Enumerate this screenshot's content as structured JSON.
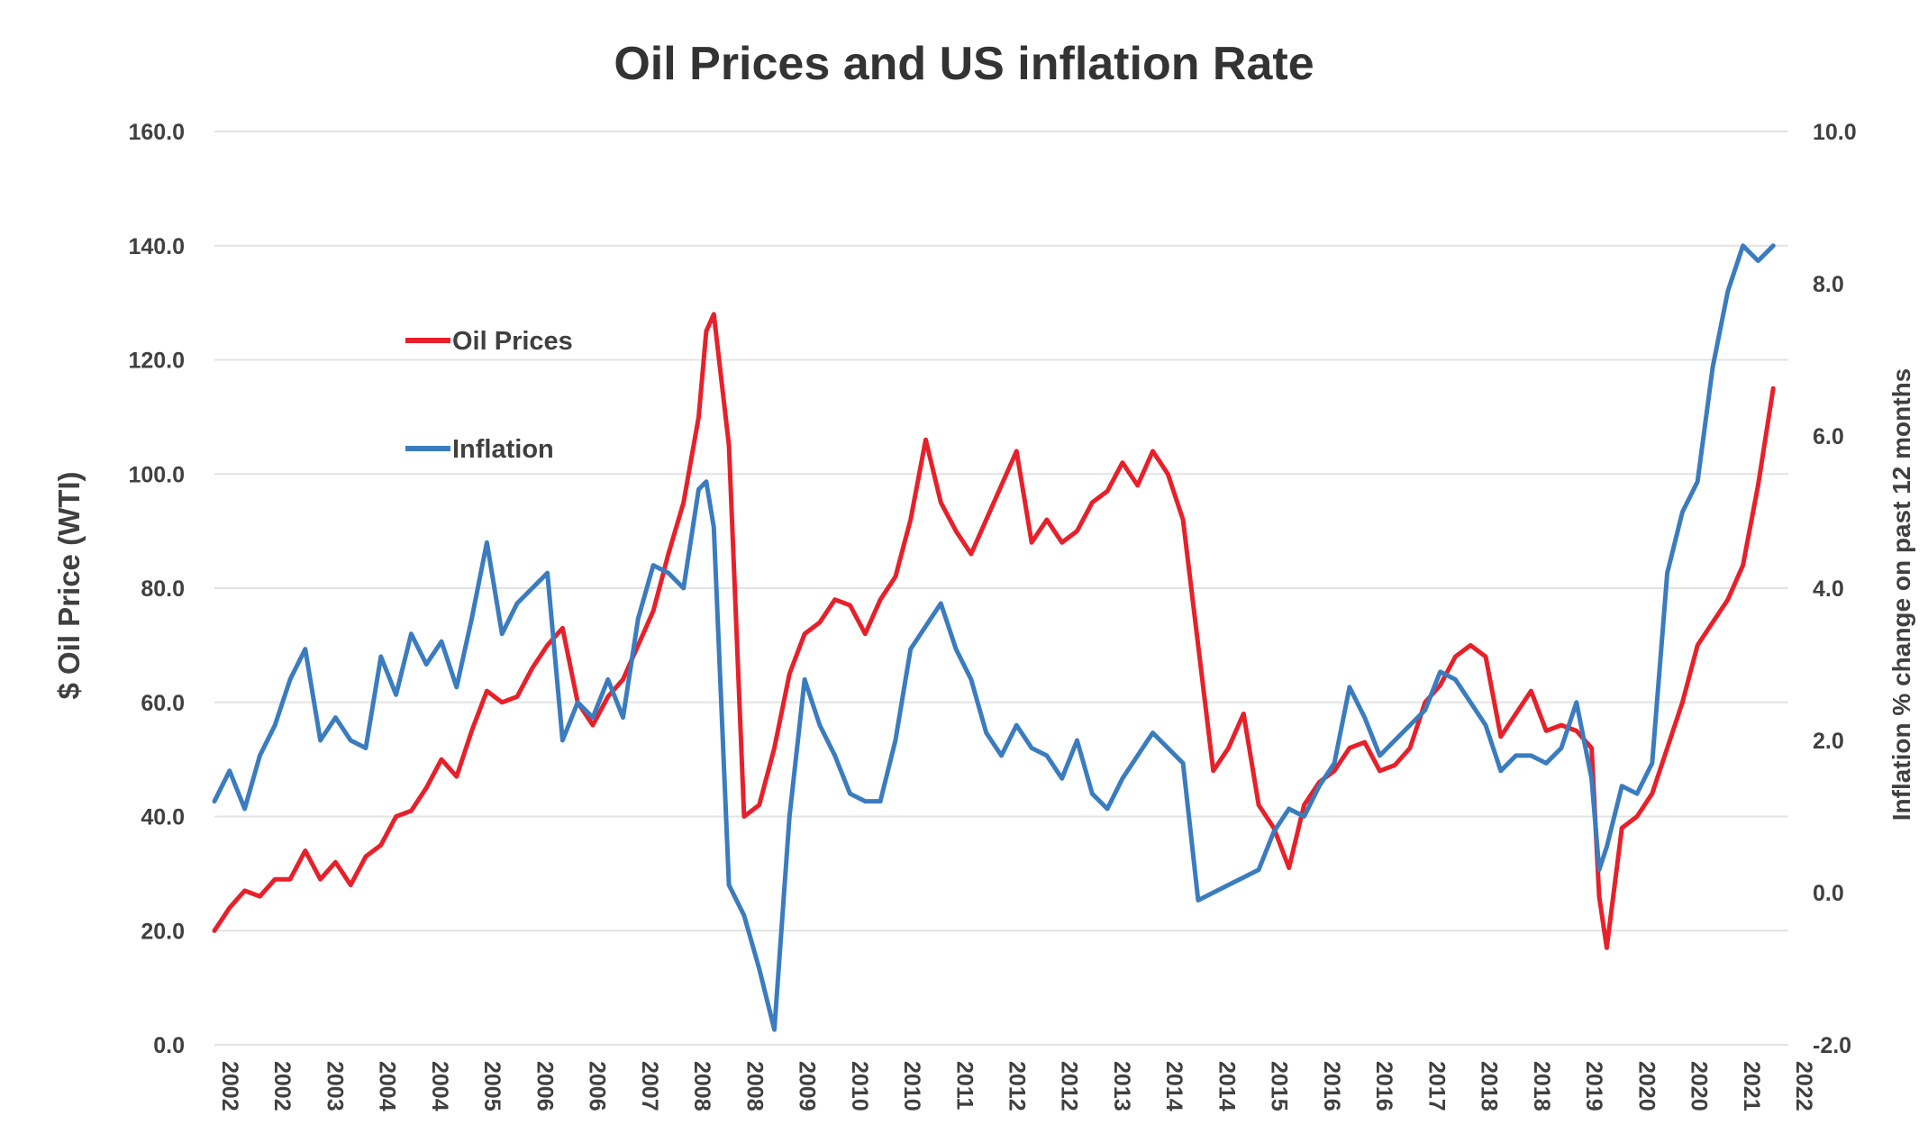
{
  "chart_data": {
    "type": "line",
    "title": "Oil Prices and US inflation Rate",
    "ylabel": "$ Oil Price (WTI)",
    "ylabel_right": "Inflation % change on past 12 months",
    "ylim": [
      0,
      160
    ],
    "ylim_right": [
      -2,
      10
    ],
    "yticks": [
      "0.0",
      "20.0",
      "40.0",
      "60.0",
      "80.0",
      "100.0",
      "120.0",
      "140.0",
      "160.0"
    ],
    "yticks_right": [
      "-2.0",
      "0.0",
      "2.0",
      "4.0",
      "6.0",
      "8.0",
      "10.0"
    ],
    "xlim": [
      2002.0,
      2022.8
    ],
    "x_tick_labels": [
      "2002",
      "2002",
      "2003",
      "2004",
      "2004",
      "2005",
      "2006",
      "2006",
      "2007",
      "2008",
      "2008",
      "2009",
      "2010",
      "2010",
      "2011",
      "2012",
      "2012",
      "2013",
      "2014",
      "2014",
      "2015",
      "2016",
      "2016",
      "2017",
      "2018",
      "2018",
      "2019",
      "2020",
      "2020",
      "2021",
      "2022"
    ],
    "grid": true,
    "legend_placement": "upper-left",
    "series": [
      {
        "name": "Oil Prices",
        "axis": "left",
        "color": "#e8202a",
        "x": [
          2002.0,
          2002.2,
          2002.4,
          2002.6,
          2002.8,
          2003.0,
          2003.2,
          2003.4,
          2003.6,
          2003.8,
          2004.0,
          2004.2,
          2004.4,
          2004.6,
          2004.8,
          2005.0,
          2005.2,
          2005.4,
          2005.6,
          2005.8,
          2006.0,
          2006.2,
          2006.4,
          2006.6,
          2006.8,
          2007.0,
          2007.2,
          2007.4,
          2007.6,
          2007.8,
          2008.0,
          2008.2,
          2008.4,
          2008.5,
          2008.6,
          2008.8,
          2009.0,
          2009.2,
          2009.4,
          2009.6,
          2009.8,
          2010.0,
          2010.2,
          2010.4,
          2010.6,
          2010.8,
          2011.0,
          2011.2,
          2011.4,
          2011.6,
          2011.8,
          2012.0,
          2012.2,
          2012.4,
          2012.6,
          2012.8,
          2013.0,
          2013.2,
          2013.4,
          2013.6,
          2013.8,
          2014.0,
          2014.2,
          2014.4,
          2014.6,
          2014.8,
          2015.0,
          2015.2,
          2015.4,
          2015.6,
          2015.8,
          2016.0,
          2016.2,
          2016.4,
          2016.6,
          2016.8,
          2017.0,
          2017.2,
          2017.4,
          2017.6,
          2017.8,
          2018.0,
          2018.2,
          2018.4,
          2018.6,
          2018.8,
          2019.0,
          2019.2,
          2019.4,
          2019.6,
          2019.8,
          2020.0,
          2020.2,
          2020.3,
          2020.4,
          2020.6,
          2020.8,
          2021.0,
          2021.2,
          2021.4,
          2021.6,
          2021.8,
          2022.0,
          2022.2,
          2022.4,
          2022.6
        ],
        "values": [
          20,
          24,
          27,
          26,
          29,
          29,
          34,
          29,
          32,
          28,
          33,
          35,
          40,
          41,
          45,
          50,
          47,
          55,
          62,
          60,
          61,
          66,
          70,
          73,
          60,
          56,
          61,
          64,
          70,
          76,
          86,
          95,
          110,
          125,
          128,
          105,
          40,
          42,
          52,
          65,
          72,
          74,
          78,
          77,
          72,
          78,
          82,
          92,
          106,
          95,
          90,
          86,
          92,
          98,
          104,
          88,
          92,
          88,
          90,
          95,
          97,
          102,
          98,
          104,
          100,
          92,
          70,
          48,
          52,
          58,
          42,
          38,
          31,
          42,
          46,
          48,
          52,
          53,
          48,
          49,
          52,
          60,
          63,
          68,
          70,
          68,
          54,
          58,
          62,
          55,
          56,
          55,
          52,
          26,
          17,
          38,
          40,
          44,
          52,
          60,
          70,
          74,
          78,
          84,
          98,
          115
        ]
      },
      {
        "name": "Inflation",
        "axis": "right",
        "color": "#3a7cbf",
        "x": [
          2002.0,
          2002.2,
          2002.4,
          2002.6,
          2002.8,
          2003.0,
          2003.2,
          2003.4,
          2003.6,
          2003.8,
          2004.0,
          2004.2,
          2004.4,
          2004.6,
          2004.8,
          2005.0,
          2005.2,
          2005.4,
          2005.6,
          2005.8,
          2006.0,
          2006.2,
          2006.4,
          2006.6,
          2006.8,
          2007.0,
          2007.2,
          2007.4,
          2007.6,
          2007.8,
          2008.0,
          2008.2,
          2008.4,
          2008.5,
          2008.6,
          2008.8,
          2009.0,
          2009.2,
          2009.4,
          2009.6,
          2009.8,
          2010.0,
          2010.2,
          2010.4,
          2010.6,
          2010.8,
          2011.0,
          2011.2,
          2011.4,
          2011.6,
          2011.8,
          2012.0,
          2012.2,
          2012.4,
          2012.6,
          2012.8,
          2013.0,
          2013.2,
          2013.4,
          2013.6,
          2013.8,
          2014.0,
          2014.2,
          2014.4,
          2014.6,
          2014.8,
          2015.0,
          2015.2,
          2015.4,
          2015.6,
          2015.8,
          2016.0,
          2016.2,
          2016.4,
          2016.6,
          2016.8,
          2017.0,
          2017.2,
          2017.4,
          2017.6,
          2017.8,
          2018.0,
          2018.2,
          2018.4,
          2018.6,
          2018.8,
          2019.0,
          2019.2,
          2019.4,
          2019.6,
          2019.8,
          2020.0,
          2020.2,
          2020.3,
          2020.4,
          2020.6,
          2020.8,
          2021.0,
          2021.2,
          2021.4,
          2021.6,
          2021.8,
          2022.0,
          2022.2,
          2022.4,
          2022.6
        ],
        "values": [
          1.2,
          1.6,
          1.1,
          1.8,
          2.2,
          2.8,
          3.2,
          2.0,
          2.3,
          2.0,
          1.9,
          3.1,
          2.6,
          3.4,
          3.0,
          3.3,
          2.7,
          3.6,
          4.6,
          3.4,
          3.8,
          4.0,
          4.2,
          2.0,
          2.5,
          2.3,
          2.8,
          2.3,
          3.6,
          4.3,
          4.2,
          4.0,
          5.3,
          5.4,
          4.8,
          0.1,
          -0.3,
          -1.0,
          -1.8,
          1.0,
          2.8,
          2.2,
          1.8,
          1.3,
          1.2,
          1.2,
          2.0,
          3.2,
          3.5,
          3.8,
          3.2,
          2.8,
          2.1,
          1.8,
          2.2,
          1.9,
          1.8,
          1.5,
          2.0,
          1.3,
          1.1,
          1.5,
          1.8,
          2.1,
          1.9,
          1.7,
          -0.1,
          0.0,
          0.1,
          0.2,
          0.3,
          0.8,
          1.1,
          1.0,
          1.4,
          1.7,
          2.7,
          2.3,
          1.8,
          2.0,
          2.2,
          2.4,
          2.9,
          2.8,
          2.5,
          2.2,
          1.6,
          1.8,
          1.8,
          1.7,
          1.9,
          2.5,
          1.5,
          0.3,
          0.6,
          1.4,
          1.3,
          1.7,
          4.2,
          5.0,
          5.4,
          6.9,
          7.9,
          8.5,
          8.3,
          8.5
        ]
      }
    ]
  }
}
